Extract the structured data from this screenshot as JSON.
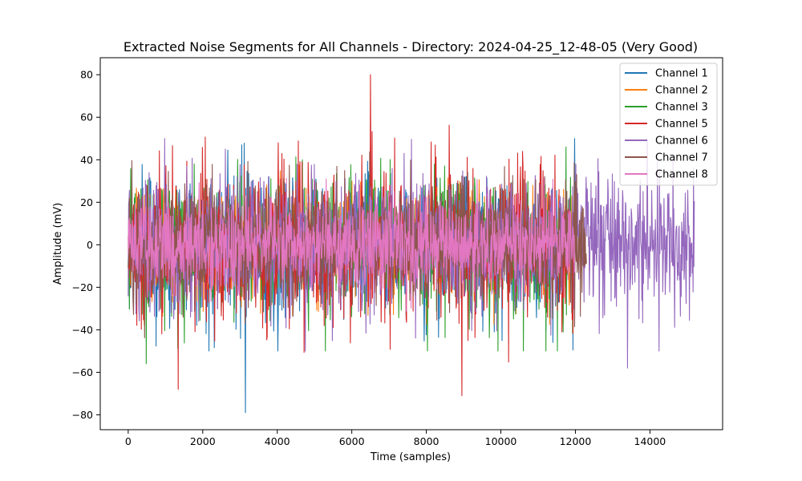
{
  "chart_data": {
    "type": "line",
    "title": "Extracted Noise Segments for All Channels - Directory: 2024-04-25_12-48-05 (Very Good)",
    "xlabel": "Time (samples)",
    "ylabel": "Amplitude (mV)",
    "xlim": [
      -750,
      15950
    ],
    "ylim": [
      -87,
      88
    ],
    "x_ticks": [
      0,
      2000,
      4000,
      6000,
      8000,
      10000,
      12000,
      14000
    ],
    "y_ticks": [
      -80,
      -60,
      -40,
      -20,
      0,
      20,
      40,
      60,
      80
    ],
    "grid": false,
    "legend_position": "top-right",
    "series": [
      {
        "name": "Channel 1",
        "color": "#1f77b4",
        "n_samples": 12000,
        "typical_range": [
          -40,
          40
        ],
        "extremes": [
          {
            "x": 3150,
            "y": -79
          },
          {
            "x": 3050,
            "y": 47
          }
        ]
      },
      {
        "name": "Channel 2",
        "color": "#ff7f0e",
        "n_samples": 12000,
        "typical_range": [
          -30,
          30
        ],
        "extremes": []
      },
      {
        "name": "Channel 3",
        "color": "#2ca02c",
        "n_samples": 12000,
        "typical_range": [
          -40,
          40
        ],
        "extremes": [
          {
            "x": 480,
            "y": 49
          },
          {
            "x": 480,
            "y": -56
          }
        ]
      },
      {
        "name": "Channel 5",
        "color": "#d62728",
        "n_samples": 12000,
        "typical_range": [
          -45,
          45
        ],
        "extremes": [
          {
            "x": 6500,
            "y": 80
          },
          {
            "x": 8950,
            "y": -71
          },
          {
            "x": 1340,
            "y": -68
          }
        ]
      },
      {
        "name": "Channel 6",
        "color": "#9467bd",
        "n_samples": 15200,
        "typical_range": [
          -40,
          40
        ],
        "extremes": [
          {
            "x": 14200,
            "y": 39
          },
          {
            "x": 13400,
            "y": -58
          }
        ]
      },
      {
        "name": "Channel 7",
        "color": "#8c564b",
        "n_samples": 12300,
        "typical_range": [
          -35,
          35
        ],
        "extremes": []
      },
      {
        "name": "Channel 8",
        "color": "#e377c2",
        "n_samples": 12000,
        "typical_range": [
          -25,
          25
        ],
        "extremes": []
      }
    ]
  }
}
